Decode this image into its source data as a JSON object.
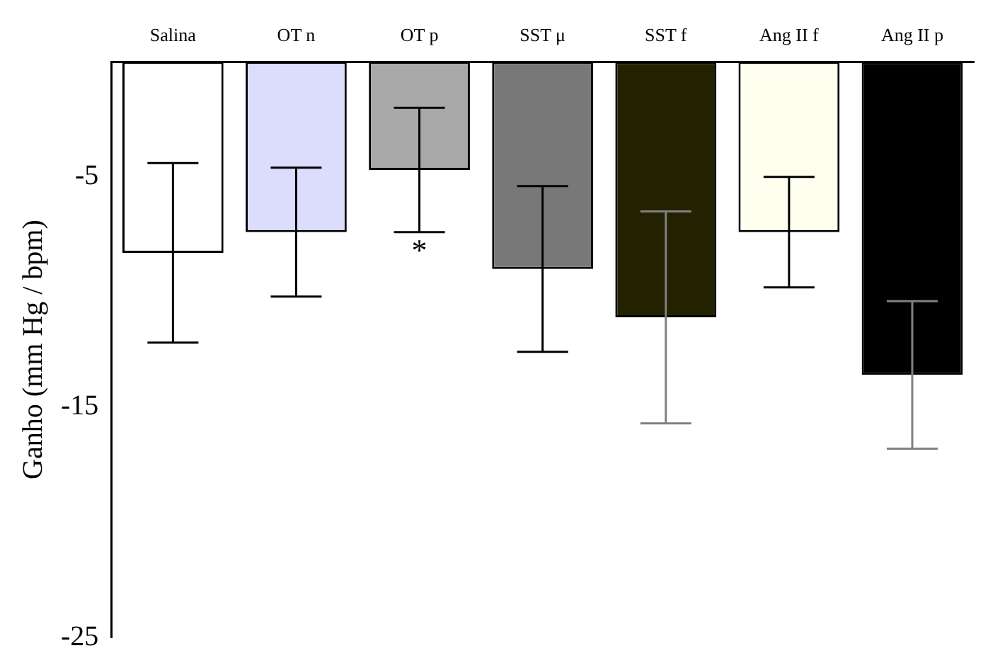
{
  "chart_data": {
    "type": "bar",
    "ylabel": "Ganho (mm Hg / bpm)",
    "categories": [
      "Salina",
      "OT n",
      "OT p",
      "SST μ",
      "SST f",
      "Ang II f",
      "Ang II p"
    ],
    "values": [
      -8.3,
      -7.4,
      -4.7,
      -9.0,
      -11.1,
      -7.4,
      -13.6
    ],
    "errors": [
      3.9,
      2.8,
      2.7,
      3.6,
      4.6,
      2.4,
      3.2
    ],
    "colors": [
      "#ffffff",
      "#dcdcfc",
      "#a8a8a8",
      "#787878",
      "#222200",
      "#fffff0",
      "#000000"
    ],
    "ylim": [
      -25,
      0
    ],
    "yticks": [
      -5,
      -15,
      -25
    ],
    "grid": false,
    "legend": false,
    "annotations": [
      {
        "text": "*",
        "x": "OT p",
        "y": -7.35
      }
    ]
  }
}
